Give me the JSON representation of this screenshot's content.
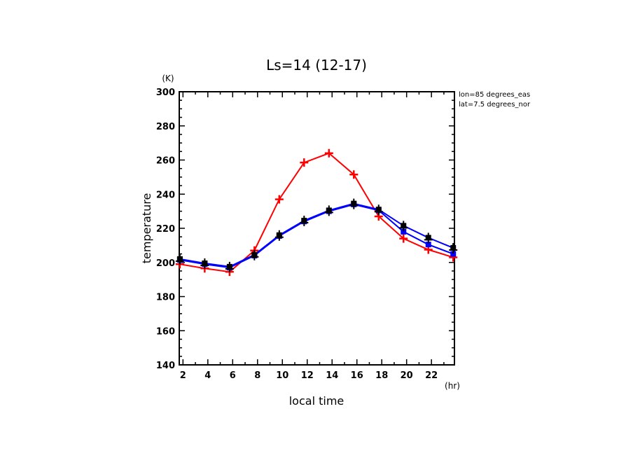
{
  "chart_data": {
    "type": "line",
    "title": "Ls=14 (12-17)",
    "xlabel": "local time",
    "xunit": "(hr)",
    "ylabel": "temperature",
    "yunit": "(K)",
    "xlim": [
      1.7,
      23.85
    ],
    "ylim": [
      140,
      300
    ],
    "xticks": [
      2,
      4,
      6,
      8,
      10,
      12,
      14,
      16,
      18,
      20,
      22
    ],
    "yticks": [
      140,
      160,
      180,
      200,
      220,
      240,
      260,
      280,
      300
    ],
    "grid": false,
    "annotations": [
      "lon=85 degrees_eas",
      "lat=7.5 degrees_nor"
    ],
    "annotation_placement": "top-right-outside",
    "x": [
      1.75,
      3.75,
      5.75,
      7.75,
      9.75,
      11.75,
      13.75,
      15.75,
      17.75,
      19.75,
      21.75,
      23.75
    ],
    "series": [
      {
        "name": "red",
        "color": "#ff0000",
        "marker": "plus",
        "values": [
          199,
          196.5,
          194.5,
          207,
          237,
          258.5,
          264,
          251.5,
          227,
          214,
          207.5,
          203
        ]
      },
      {
        "name": "blue-lower",
        "color": "#0000ff",
        "marker": "square",
        "values": [
          201.5,
          199,
          197,
          204,
          215.5,
          224,
          230,
          234,
          230.5,
          218,
          210.5,
          205
        ]
      },
      {
        "name": "blue-upper",
        "color": "#0000ff",
        "marker_color": "#000000",
        "marker": "square-plus",
        "values": [
          202,
          199.5,
          197.5,
          204.5,
          216,
          224.5,
          230.5,
          234.5,
          231,
          221.5,
          214.5,
          208.5
        ]
      }
    ]
  }
}
